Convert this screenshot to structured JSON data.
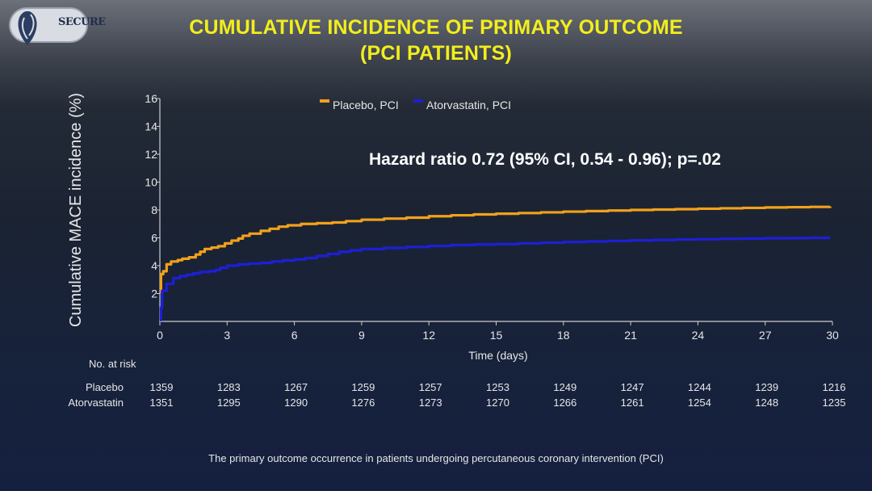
{
  "logo": {
    "text": "SECURE"
  },
  "title": {
    "line1": "CUMULATIVE INCIDENCE OF PRIMARY OUTCOME",
    "line2": "(PCI PATIENTS)"
  },
  "annotation": "Hazard ratio 0.72 (95% CI, 0.54 - 0.96); p=.02",
  "caption": "The primary outcome occurrence in patients undergoing percutaneous coronary intervention (PCI)",
  "colors": {
    "placebo": "#f2a11b",
    "atorvastatin": "#1d1fd6",
    "title": "#f2ee1c"
  },
  "chart_data": {
    "type": "line",
    "title": "",
    "xlabel": "Time (days)",
    "ylabel": "Cumulative MACE incidence (%)",
    "xlim": [
      0,
      30
    ],
    "ylim": [
      0,
      16
    ],
    "xticks": [
      0,
      3,
      6,
      9,
      12,
      15,
      18,
      21,
      24,
      27,
      30
    ],
    "yticks": [
      2,
      4,
      6,
      8,
      10,
      12,
      14,
      16
    ],
    "legend_position": "top",
    "series": [
      {
        "name": "Placebo, PCI",
        "color": "#f2a11b",
        "x": [
          0,
          0.05,
          0.15,
          0.3,
          0.5,
          0.8,
          1.0,
          1.3,
          1.6,
          1.8,
          2.0,
          2.3,
          2.6,
          2.9,
          3.2,
          3.5,
          3.7,
          4.0,
          4.5,
          4.9,
          5.3,
          5.7,
          6.3,
          7.0,
          7.7,
          8.3,
          9.0,
          10.0,
          11.0,
          12.0,
          13.0,
          14.0,
          15.0,
          16.0,
          17.0,
          18.0,
          19.0,
          20.0,
          21.0,
          22.0,
          23.0,
          24.0,
          25.0,
          26.0,
          27.0,
          28.0,
          29.0,
          29.9
        ],
        "values": [
          2.1,
          3.4,
          3.6,
          4.1,
          4.3,
          4.4,
          4.5,
          4.6,
          4.8,
          5.0,
          5.2,
          5.3,
          5.4,
          5.6,
          5.8,
          5.95,
          6.15,
          6.3,
          6.5,
          6.65,
          6.8,
          6.9,
          7.0,
          7.05,
          7.1,
          7.2,
          7.3,
          7.38,
          7.45,
          7.55,
          7.62,
          7.68,
          7.73,
          7.78,
          7.83,
          7.88,
          7.92,
          7.96,
          8.0,
          8.03,
          8.06,
          8.09,
          8.12,
          8.15,
          8.18,
          8.2,
          8.22,
          8.25
        ]
      },
      {
        "name": "Atorvastatin, PCI",
        "color": "#1d1fd6",
        "x": [
          0,
          0.05,
          0.1,
          0.3,
          0.6,
          0.9,
          1.2,
          1.5,
          1.8,
          2.2,
          2.5,
          2.7,
          3.0,
          3.5,
          4.0,
          4.5,
          5.0,
          5.5,
          6.0,
          6.5,
          7.0,
          7.5,
          8.0,
          8.5,
          9.0,
          10.0,
          11.0,
          12.0,
          13.0,
          14.0,
          15.0,
          16.0,
          17.0,
          18.0,
          19.0,
          20.0,
          21.0,
          22.0,
          23.0,
          24.0,
          25.0,
          26.0,
          27.0,
          28.0,
          29.0,
          29.9
        ],
        "values": [
          0.1,
          1.0,
          2.2,
          2.7,
          3.1,
          3.25,
          3.35,
          3.45,
          3.55,
          3.6,
          3.7,
          3.85,
          4.0,
          4.1,
          4.15,
          4.2,
          4.3,
          4.38,
          4.45,
          4.55,
          4.7,
          4.85,
          5.0,
          5.1,
          5.2,
          5.28,
          5.35,
          5.42,
          5.48,
          5.52,
          5.55,
          5.6,
          5.65,
          5.7,
          5.74,
          5.78,
          5.82,
          5.85,
          5.88,
          5.9,
          5.93,
          5.95,
          5.97,
          5.98,
          6.0,
          6.0
        ]
      }
    ],
    "risk_table": {
      "header": "No. at risk",
      "times": [
        0,
        3,
        6,
        9,
        12,
        15,
        18,
        21,
        24,
        27,
        30
      ],
      "rows": [
        {
          "label": "Placebo",
          "values": [
            "1359",
            "1283",
            "1267",
            "1259",
            "1257",
            "1253",
            "1249",
            "1247",
            "1244",
            "1239",
            "1216"
          ]
        },
        {
          "label": "Atorvastatin",
          "values": [
            "1351",
            "1295",
            "1290",
            "1276",
            "1273",
            "1270",
            "1266",
            "1261",
            "1254",
            "1248",
            "1235"
          ]
        }
      ]
    }
  }
}
